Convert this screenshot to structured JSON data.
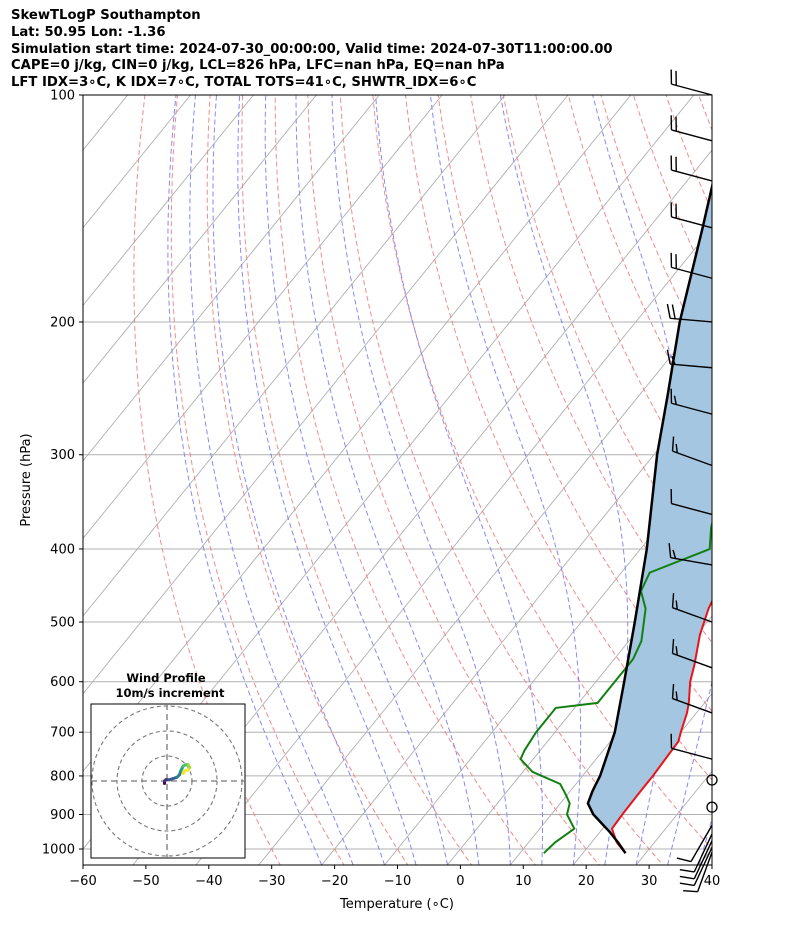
{
  "header": {
    "line1": "SkewTLogP Southampton",
    "line2": "Lat: 50.95   Lon: -1.36",
    "line3": "Simulation start time: 2024-07-30_00:00:00, Valid time: 2024-07-30T11:00:00.00",
    "line4": "CAPE=0 j/kg, CIN=0 j/kg, LCL=826 hPa, LFC=nan hPa, EQ=nan hPa",
    "line5": "LFT IDX=3∘C, K IDX=7∘C, TOTAL TOTS=41∘C, SHWTR_IDX=6∘C"
  },
  "chart_data": {
    "type": "line",
    "subtype": "skew-t log-p diagram",
    "xlabel": "Temperature (∘C)",
    "ylabel": "Pressure (hPa)",
    "xlim": [
      -60,
      40
    ],
    "ylim": [
      1050,
      100
    ],
    "y_scale": "log",
    "x_ticks": [
      "−60",
      "−50",
      "−40",
      "−30",
      "−20",
      "−10",
      "0",
      "10",
      "20",
      "30",
      "40"
    ],
    "y_ticks": [
      "100",
      "200",
      "300",
      "400",
      "500",
      "600",
      "700",
      "800",
      "900",
      "1000"
    ],
    "grid": true,
    "colors": {
      "temperature": "#e8141a",
      "dewpoint": "#118011",
      "parcel": "#000000",
      "shading": "#a4c6e0",
      "dry_adiabat": "#f08080",
      "moist_adiabat": "#7c7cf2",
      "isotherm": "#b0b0b0",
      "mixing_ratio": "#8a3fbd"
    },
    "temperature": {
      "p": [
        1013,
        980,
        940,
        900,
        850,
        800,
        760,
        720,
        700,
        660,
        640,
        600,
        570,
        520,
        480,
        440,
        400,
        370,
        345,
        320,
        300,
        270,
        240,
        220,
        210,
        200,
        180,
        170,
        155,
        140,
        120,
        110,
        100
      ],
      "t": [
        26.8,
        24.0,
        21.5,
        21.3,
        21.2,
        21.2,
        21.0,
        20.8,
        20.0,
        18.5,
        17.5,
        15.0,
        13.5,
        10.5,
        8.5,
        7.0,
        5.0,
        3.9,
        2.0,
        -0.5,
        -1.5,
        -3.5,
        -6.0,
        -7.0,
        -6.5,
        -6.5,
        -5.5,
        -4.0,
        -1.5,
        0.0,
        3.5,
        6.0,
        7.5
      ]
    },
    "dewpoint": {
      "p": [
        1013,
        980,
        940,
        900,
        870,
        850,
        820,
        790,
        760,
        740,
        700,
        650,
        640,
        560,
        530,
        480,
        455,
        430,
        400,
        375,
        350,
        320,
        300,
        270,
        250,
        240,
        230,
        210,
        200,
        180,
        160,
        150,
        130,
        100
      ],
      "t": [
        13.8,
        14.2,
        15.5,
        12.5,
        11.5,
        10.0,
        7.5,
        1.5,
        -2.0,
        -2.5,
        -3.0,
        -3.0,
        3.0,
        3.0,
        2.0,
        -1.5,
        -4.5,
        -5.5,
        1.0,
        -1.5,
        -3.5,
        -3.5,
        -2.0,
        -5.0,
        -7.5,
        -8.0,
        -6.5,
        -9.0,
        -9.5,
        -13.0,
        -15.0,
        -15.0,
        -23.0,
        -25.0
      ]
    },
    "parcel": {
      "p": [
        1013,
        980,
        950,
        900,
        870,
        840,
        826,
        800,
        700,
        600,
        500,
        400,
        300,
        250,
        200,
        150,
        125,
        100
      ],
      "t": [
        26.8,
        24.2,
        21.6,
        16.7,
        14.4,
        13.6,
        13.3,
        12.8,
        9.5,
        4.5,
        -1.5,
        -9.0,
        -19.5,
        -25.5,
        -33.0,
        -41.5,
        -47.0,
        -53.5
      ]
    },
    "wind_barbs": [
      {
        "p": 100,
        "speed_kt": 20,
        "dir_deg": 285
      },
      {
        "p": 115,
        "speed_kt": 20,
        "dir_deg": 285
      },
      {
        "p": 130,
        "speed_kt": 20,
        "dir_deg": 285
      },
      {
        "p": 150,
        "speed_kt": 20,
        "dir_deg": 285
      },
      {
        "p": 175,
        "speed_kt": 20,
        "dir_deg": 285
      },
      {
        "p": 200,
        "speed_kt": 20,
        "dir_deg": 275
      },
      {
        "p": 230,
        "speed_kt": 15,
        "dir_deg": 275
      },
      {
        "p": 265,
        "speed_kt": 15,
        "dir_deg": 285
      },
      {
        "p": 310,
        "speed_kt": 15,
        "dir_deg": 290
      },
      {
        "p": 360,
        "speed_kt": 10,
        "dir_deg": 285
      },
      {
        "p": 420,
        "speed_kt": 15,
        "dir_deg": 280
      },
      {
        "p": 500,
        "speed_kt": 15,
        "dir_deg": 290
      },
      {
        "p": 575,
        "speed_kt": 15,
        "dir_deg": 290
      },
      {
        "p": 660,
        "speed_kt": 15,
        "dir_deg": 290
      },
      {
        "p": 760,
        "speed_kt": 10,
        "dir_deg": 285
      },
      {
        "p": 810,
        "speed_kt": 0,
        "dir_deg": 0
      },
      {
        "p": 880,
        "speed_kt": 0,
        "dir_deg": 0
      },
      {
        "p": 930,
        "speed_kt": 10,
        "dir_deg": 210
      },
      {
        "p": 955,
        "speed_kt": 10,
        "dir_deg": 205
      },
      {
        "p": 975,
        "speed_kt": 10,
        "dir_deg": 205
      },
      {
        "p": 995,
        "speed_kt": 10,
        "dir_deg": 205
      },
      {
        "p": 1010,
        "speed_kt": 10,
        "dir_deg": 200
      }
    ],
    "hodograph": {
      "title": "Wind Profile",
      "subtitle": "10m/s increment",
      "u": [
        -1,
        -1,
        -0.5,
        1,
        2.5,
        4,
        5,
        5.5,
        6,
        6.5,
        7.5,
        8.5,
        9,
        8.5,
        7,
        6.5
      ],
      "v": [
        -1,
        0,
        0.5,
        0.5,
        1,
        1.5,
        2.5,
        4,
        5,
        6,
        6.5,
        6.5,
        5.5,
        4.5,
        4,
        3
      ]
    }
  }
}
